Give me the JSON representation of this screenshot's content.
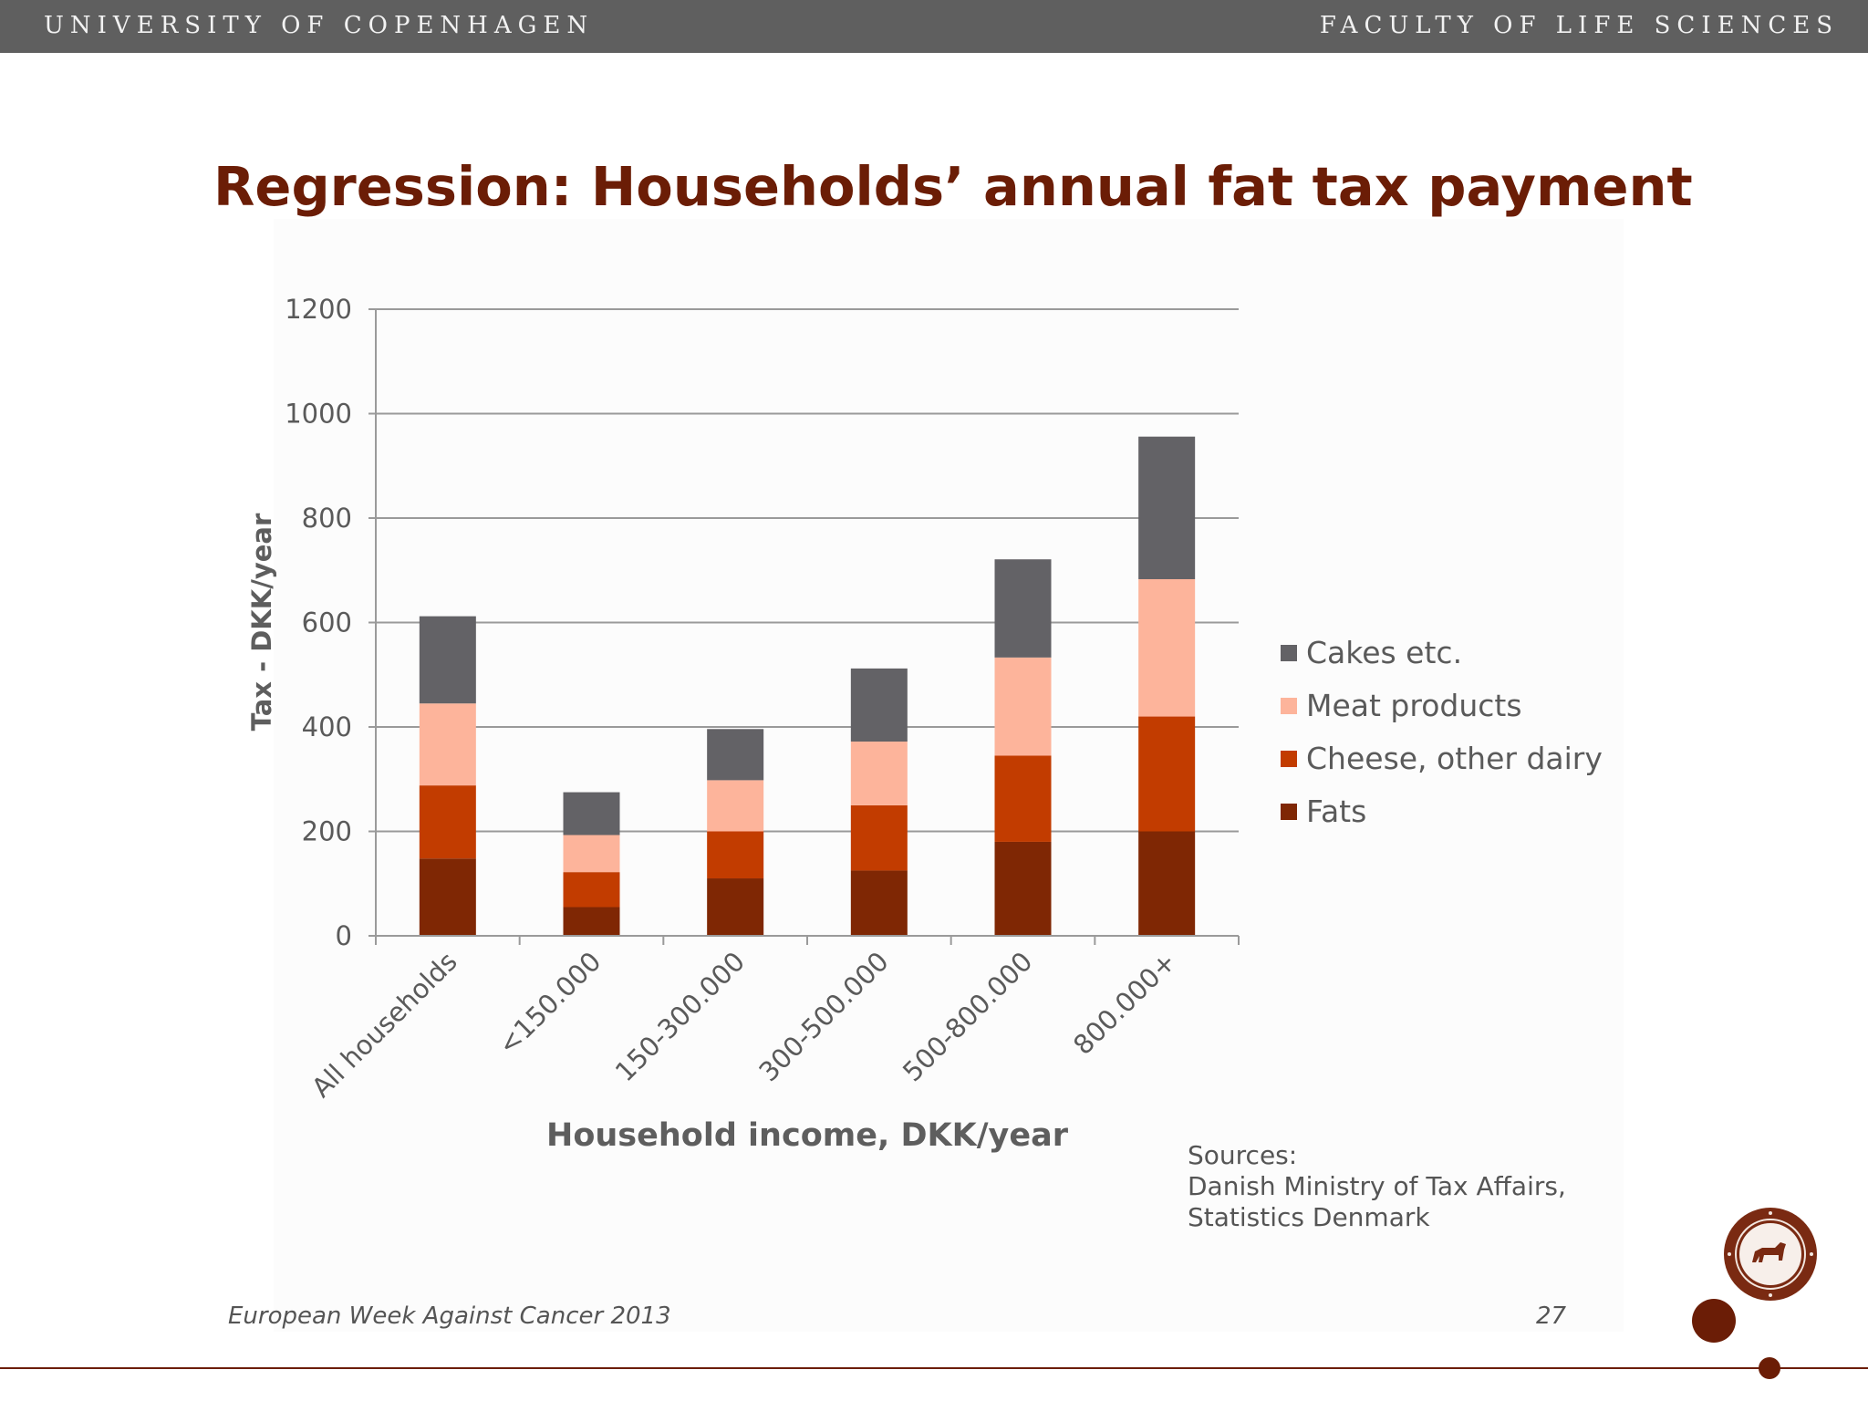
{
  "header": {
    "left": "UNIVERSITY OF COPENHAGEN",
    "right": "FACULTY OF LIFE SCIENCES"
  },
  "slide": {
    "title": "Regression: Households’ annual fat tax payment",
    "sources": [
      "Sources:",
      "Danish Ministry of Tax Affairs,",
      "Statistics Denmark"
    ],
    "footer_left": "European Week Against Cancer 2013",
    "page_number": "27"
  },
  "chart_data": {
    "type": "bar",
    "stacked": true,
    "title": "",
    "xlabel": "Household income, DKK/year",
    "ylabel": "Tax - DKK/year",
    "ylim": [
      0,
      1200
    ],
    "yticks": [
      0,
      200,
      400,
      600,
      800,
      1000,
      1200
    ],
    "grid": true,
    "legend_position": "right",
    "categories": [
      "All households",
      "<150.000",
      "150-300.000",
      "300-500.000",
      "500-800.000",
      "800.000+"
    ],
    "series": [
      {
        "name": "Fats",
        "color": "#7f2704",
        "values": [
          148,
          55,
          110,
          125,
          180,
          200
        ]
      },
      {
        "name": "Cheese, other dairy",
        "color": "#c23c00",
        "values": [
          140,
          67,
          90,
          125,
          165,
          220
        ]
      },
      {
        "name": "Meat products",
        "color": "#fdb49b",
        "values": [
          157,
          71,
          98,
          122,
          188,
          263
        ]
      },
      {
        "name": "Cakes etc.",
        "color": "#636266",
        "values": [
          167,
          82,
          98,
          140,
          188,
          273
        ]
      }
    ],
    "legend_order": [
      "Cakes etc.",
      "Meat products",
      "Cheese, other dairy",
      "Fats"
    ]
  }
}
